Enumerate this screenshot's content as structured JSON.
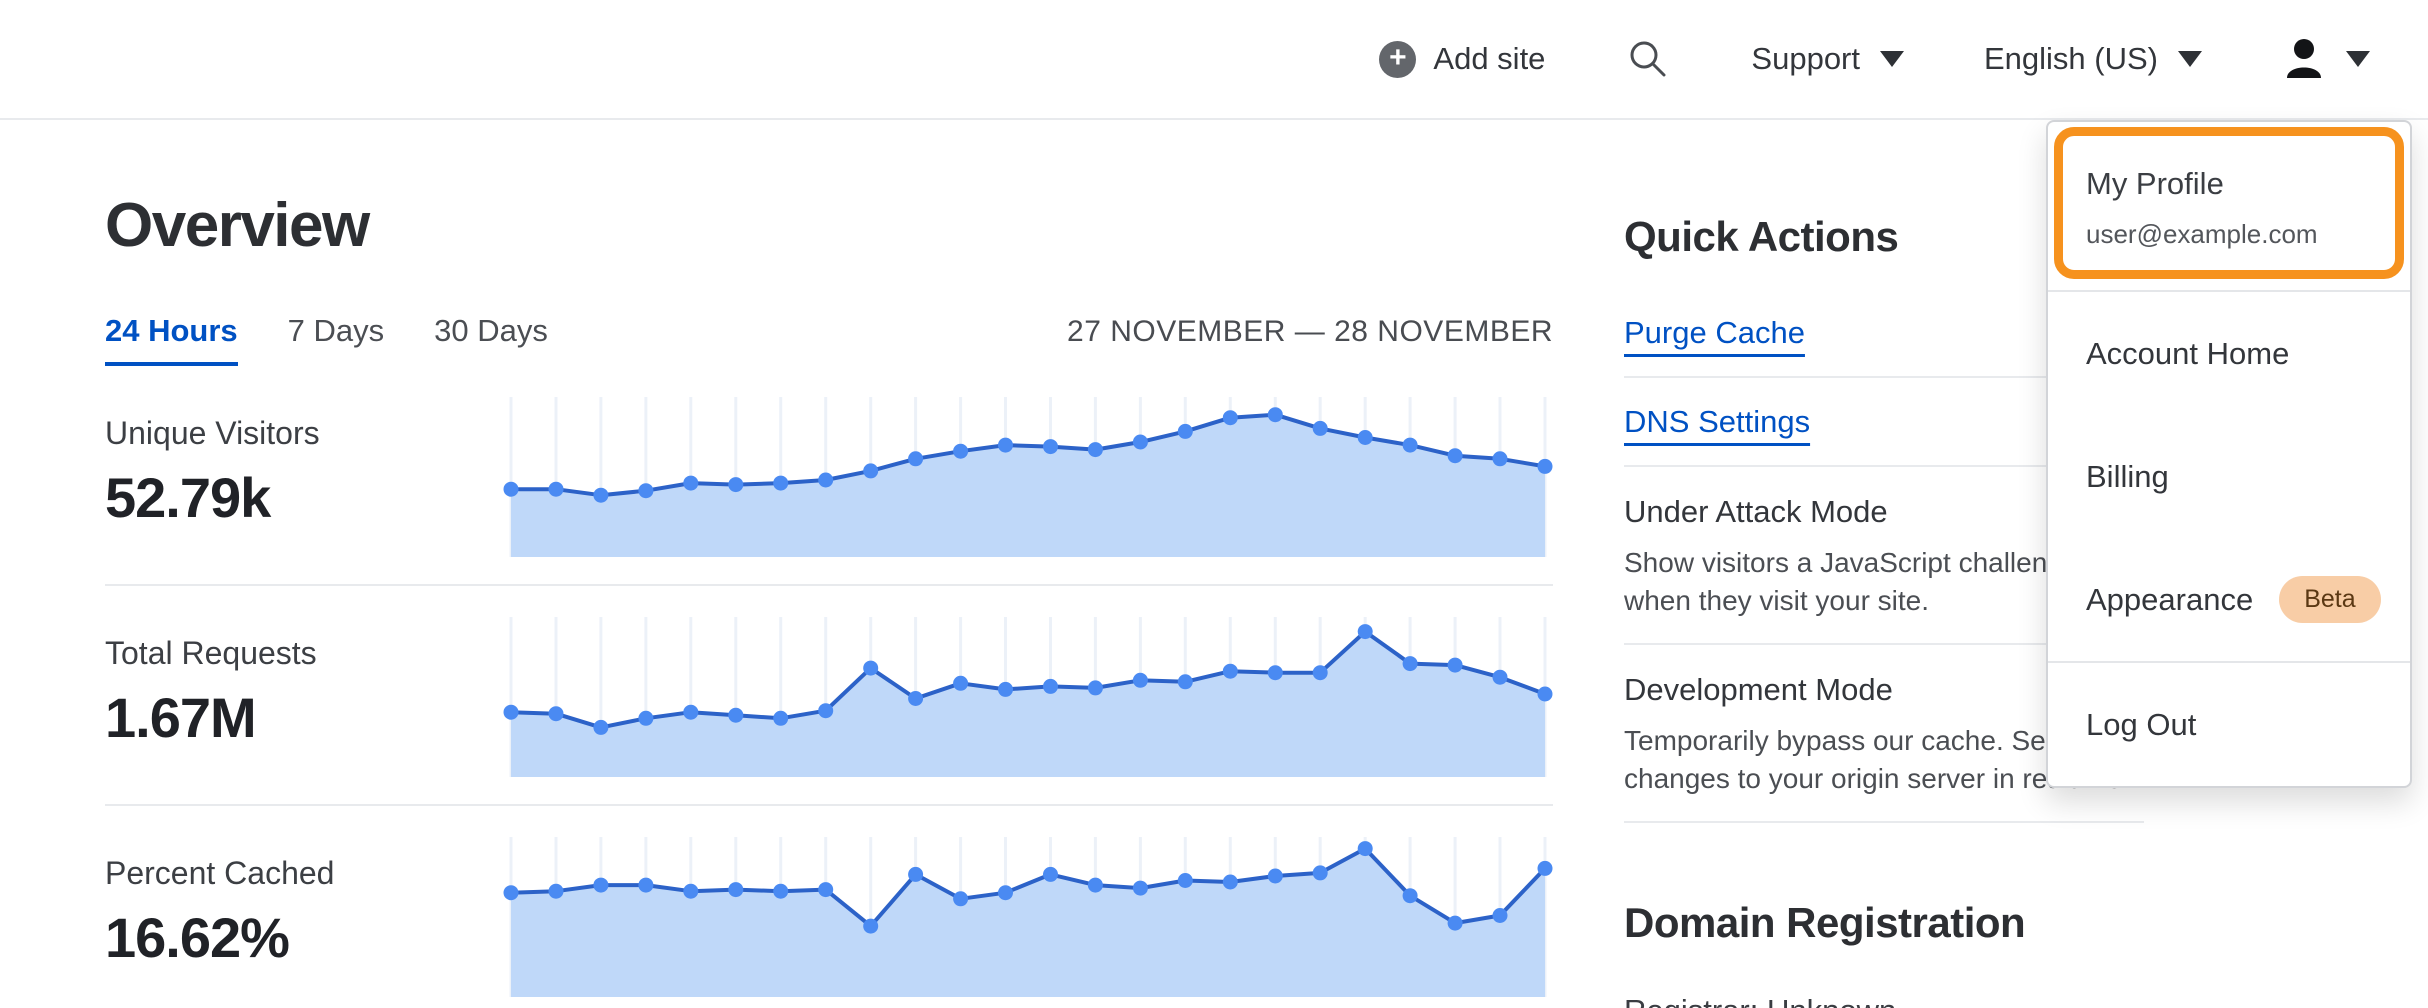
{
  "header": {
    "add_site_label": "Add site",
    "support_label": "Support",
    "language_label": "English (US)"
  },
  "page": {
    "title": "Overview",
    "tabs": [
      {
        "label": "24 Hours",
        "active": true
      },
      {
        "label": "7 Days",
        "active": false
      },
      {
        "label": "30 Days",
        "active": false
      }
    ],
    "date_range": "27 NOVEMBER — 28 NOVEMBER"
  },
  "metrics": [
    {
      "label": "Unique Visitors",
      "value": "52.79k"
    },
    {
      "label": "Total Requests",
      "value": "1.67M"
    },
    {
      "label": "Percent Cached",
      "value": "16.62%"
    }
  ],
  "chart_data": [
    {
      "type": "area",
      "title": "Unique Visitors sparkline (24 Hours)",
      "total_displayed": "52.79k",
      "axis_labels_visible": false,
      "unit": "relative height 0-1 (no numeric axis shown)",
      "points_rel": [
        0.42,
        0.42,
        0.38,
        0.41,
        0.46,
        0.45,
        0.46,
        0.48,
        0.54,
        0.62,
        0.67,
        0.71,
        0.7,
        0.68,
        0.73,
        0.8,
        0.89,
        0.91,
        0.82,
        0.76,
        0.71,
        0.64,
        0.62,
        0.57
      ],
      "line_color": "#2c62c8",
      "dot_color": "#4a8af2",
      "fill_color": "#bfd8f9",
      "gridline_color": "#ecf1f8"
    },
    {
      "type": "area",
      "title": "Total Requests sparkline (24 Hours)",
      "total_displayed": "1.67M",
      "axis_labels_visible": false,
      "unit": "relative height 0-1 (no numeric axis shown)",
      "points_rel": [
        0.4,
        0.39,
        0.3,
        0.36,
        0.4,
        0.38,
        0.36,
        0.41,
        0.69,
        0.49,
        0.59,
        0.55,
        0.57,
        0.56,
        0.61,
        0.6,
        0.67,
        0.66,
        0.66,
        0.93,
        0.72,
        0.71,
        0.63,
        0.52
      ],
      "line_color": "#2c62c8",
      "dot_color": "#4a8af2",
      "fill_color": "#bfd8f9",
      "gridline_color": "#ecf1f8"
    },
    {
      "type": "area",
      "title": "Percent Cached sparkline (24 Hours)",
      "total_displayed": "16.62%",
      "axis_labels_visible": false,
      "unit": "relative height 0-1 (no numeric axis shown)",
      "points_rel": [
        0.66,
        0.67,
        0.71,
        0.71,
        0.67,
        0.68,
        0.67,
        0.68,
        0.44,
        0.78,
        0.62,
        0.66,
        0.78,
        0.71,
        0.69,
        0.74,
        0.73,
        0.77,
        0.79,
        0.95,
        0.64,
        0.46,
        0.51,
        0.82
      ],
      "line_color": "#2c62c8",
      "dot_color": "#4a8af2",
      "fill_color": "#bfd8f9",
      "gridline_color": "#ecf1f8"
    }
  ],
  "quick_actions": {
    "title": "Quick Actions",
    "links": [
      "Purge Cache",
      "DNS Settings"
    ],
    "toggles": [
      {
        "title": "Under Attack Mode",
        "description": "Show visitors a JavaScript challenge when they visit your site."
      },
      {
        "title": "Development Mode",
        "description": "Temporarily bypass our cache. See changes to your origin server in realtime."
      }
    ]
  },
  "domain_registration": {
    "title": "Domain Registration",
    "registrar_line": "Registrar: Unknown"
  },
  "account_menu": {
    "profile": {
      "label": "My Profile",
      "email": "user@example.com"
    },
    "items": [
      "Account Home",
      "Billing",
      "Appearance"
    ],
    "appearance_badge": "Beta",
    "logout_label": "Log Out",
    "annotation": {
      "target": "My Profile",
      "color": "#f6921e"
    }
  },
  "colors": {
    "link_blue": "#0051c3",
    "active_tab_blue": "#0051c3",
    "chart_line": "#2c62c8",
    "chart_dot": "#4a8af2",
    "chart_fill": "#bfd8f9",
    "annotation_orange": "#f6921e",
    "beta_badge_bg": "#f8cda6",
    "beta_badge_text": "#5b3813"
  }
}
